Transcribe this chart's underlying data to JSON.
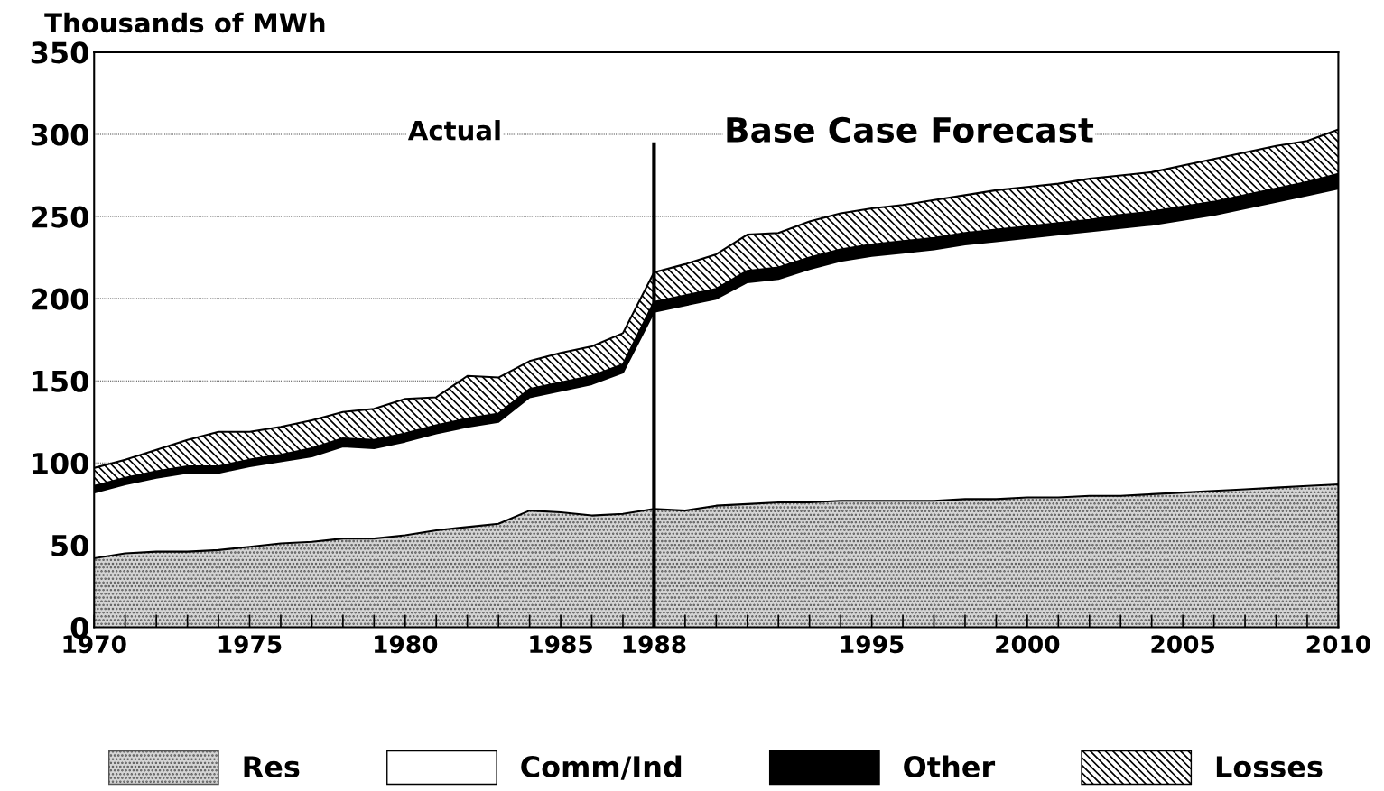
{
  "chart_data": {
    "type": "area",
    "stacked": true,
    "ylabel": "Thousands of MWh",
    "x": [
      1970,
      1971,
      1972,
      1973,
      1974,
      1975,
      1976,
      1977,
      1978,
      1979,
      1980,
      1981,
      1982,
      1983,
      1984,
      1985,
      1986,
      1987,
      1988,
      1989,
      1990,
      1991,
      1992,
      1993,
      1994,
      1995,
      1996,
      1997,
      1998,
      1999,
      2000,
      2001,
      2002,
      2003,
      2004,
      2005,
      2006,
      2007,
      2008,
      2009,
      2010
    ],
    "series": [
      {
        "name": "Res",
        "color": "#d4d4d4",
        "values": [
          42,
          45,
          46,
          46,
          47,
          49,
          51,
          52,
          54,
          54,
          56,
          59,
          61,
          63,
          71,
          70,
          68,
          69,
          72,
          71,
          74,
          75,
          76,
          76,
          77,
          77,
          77,
          77,
          78,
          78,
          79,
          79,
          80,
          80,
          81,
          82,
          83,
          84,
          85,
          86,
          87
        ]
      },
      {
        "name": "Comm/Ind",
        "color": "#ffffff",
        "values": [
          40,
          42,
          45,
          48,
          47,
          49,
          50,
          52,
          56,
          55,
          57,
          59,
          61,
          62,
          69,
          74,
          80,
          86,
          120,
          125,
          126,
          135,
          136,
          142,
          146,
          149,
          151,
          153,
          155,
          157,
          158,
          160,
          161,
          163,
          164,
          166,
          168,
          171,
          174,
          177,
          180
        ]
      },
      {
        "name": "Other",
        "color": "#000000",
        "values": [
          4,
          4,
          4,
          4,
          4,
          4,
          4,
          5,
          5,
          5,
          5,
          5,
          5,
          5,
          5,
          5,
          5,
          5,
          6,
          6,
          6,
          7,
          7,
          7,
          7,
          7,
          7,
          7,
          7,
          7,
          7,
          7,
          7,
          8,
          8,
          8,
          8,
          8,
          8,
          8,
          9
        ]
      },
      {
        "name": "Losses",
        "color": "#9a9a9a",
        "values": [
          11,
          11,
          13,
          16,
          21,
          17,
          17,
          17,
          16,
          19,
          21,
          17,
          26,
          22,
          17,
          18,
          18,
          19,
          18,
          19,
          21,
          22,
          21,
          22,
          22,
          22,
          22,
          23,
          23,
          24,
          24,
          24,
          25,
          24,
          24,
          25,
          26,
          26,
          26,
          25,
          27
        ]
      }
    ],
    "xlim": [
      1970,
      2010
    ],
    "xticks": [
      1970,
      {
        "value": 1971,
        "label": null
      },
      {
        "value": 1972,
        "label": null
      },
      {
        "value": 1973,
        "label": null
      },
      {
        "value": 1974,
        "label": null
      },
      1975,
      {
        "value": 1976,
        "label": null
      },
      {
        "value": 1977,
        "label": null
      },
      {
        "value": 1978,
        "label": null
      },
      {
        "value": 1979,
        "label": null
      },
      1980,
      {
        "value": 1981,
        "label": null
      },
      {
        "value": 1982,
        "label": null
      },
      {
        "value": 1983,
        "label": null
      },
      {
        "value": 1984,
        "label": null
      },
      1985,
      {
        "value": 1986,
        "label": null
      },
      {
        "value": 1987,
        "label": null
      },
      1988,
      {
        "value": 1989,
        "label": null
      },
      {
        "value": 1990,
        "label": null
      },
      {
        "value": 1991,
        "label": null
      },
      {
        "value": 1992,
        "label": null
      },
      {
        "value": 1993,
        "label": null
      },
      {
        "value": 1994,
        "label": null
      },
      1995,
      {
        "value": 1996,
        "label": null
      },
      {
        "value": 1997,
        "label": null
      },
      {
        "value": 1998,
        "label": null
      },
      {
        "value": 1999,
        "label": null
      },
      2000,
      {
        "value": 2001,
        "label": null
      },
      {
        "value": 2002,
        "label": null
      },
      {
        "value": 2003,
        "label": null
      },
      {
        "value": 2004,
        "label": null
      },
      2005,
      {
        "value": 2006,
        "label": null
      },
      {
        "value": 2007,
        "label": null
      },
      {
        "value": 2008,
        "label": null
      },
      {
        "value": 2009,
        "label": null
      },
      2010
    ],
    "ylim": [
      0,
      350
    ],
    "yticks": [
      0,
      50,
      100,
      150,
      200,
      250,
      300,
      350
    ],
    "grid": "y",
    "legend": "bottom",
    "ref_lines": [
      {
        "axis": "x",
        "value": 1988,
        "color": "#000000"
      }
    ],
    "annotations": [
      "Actual",
      "Base Case Forecast"
    ]
  }
}
